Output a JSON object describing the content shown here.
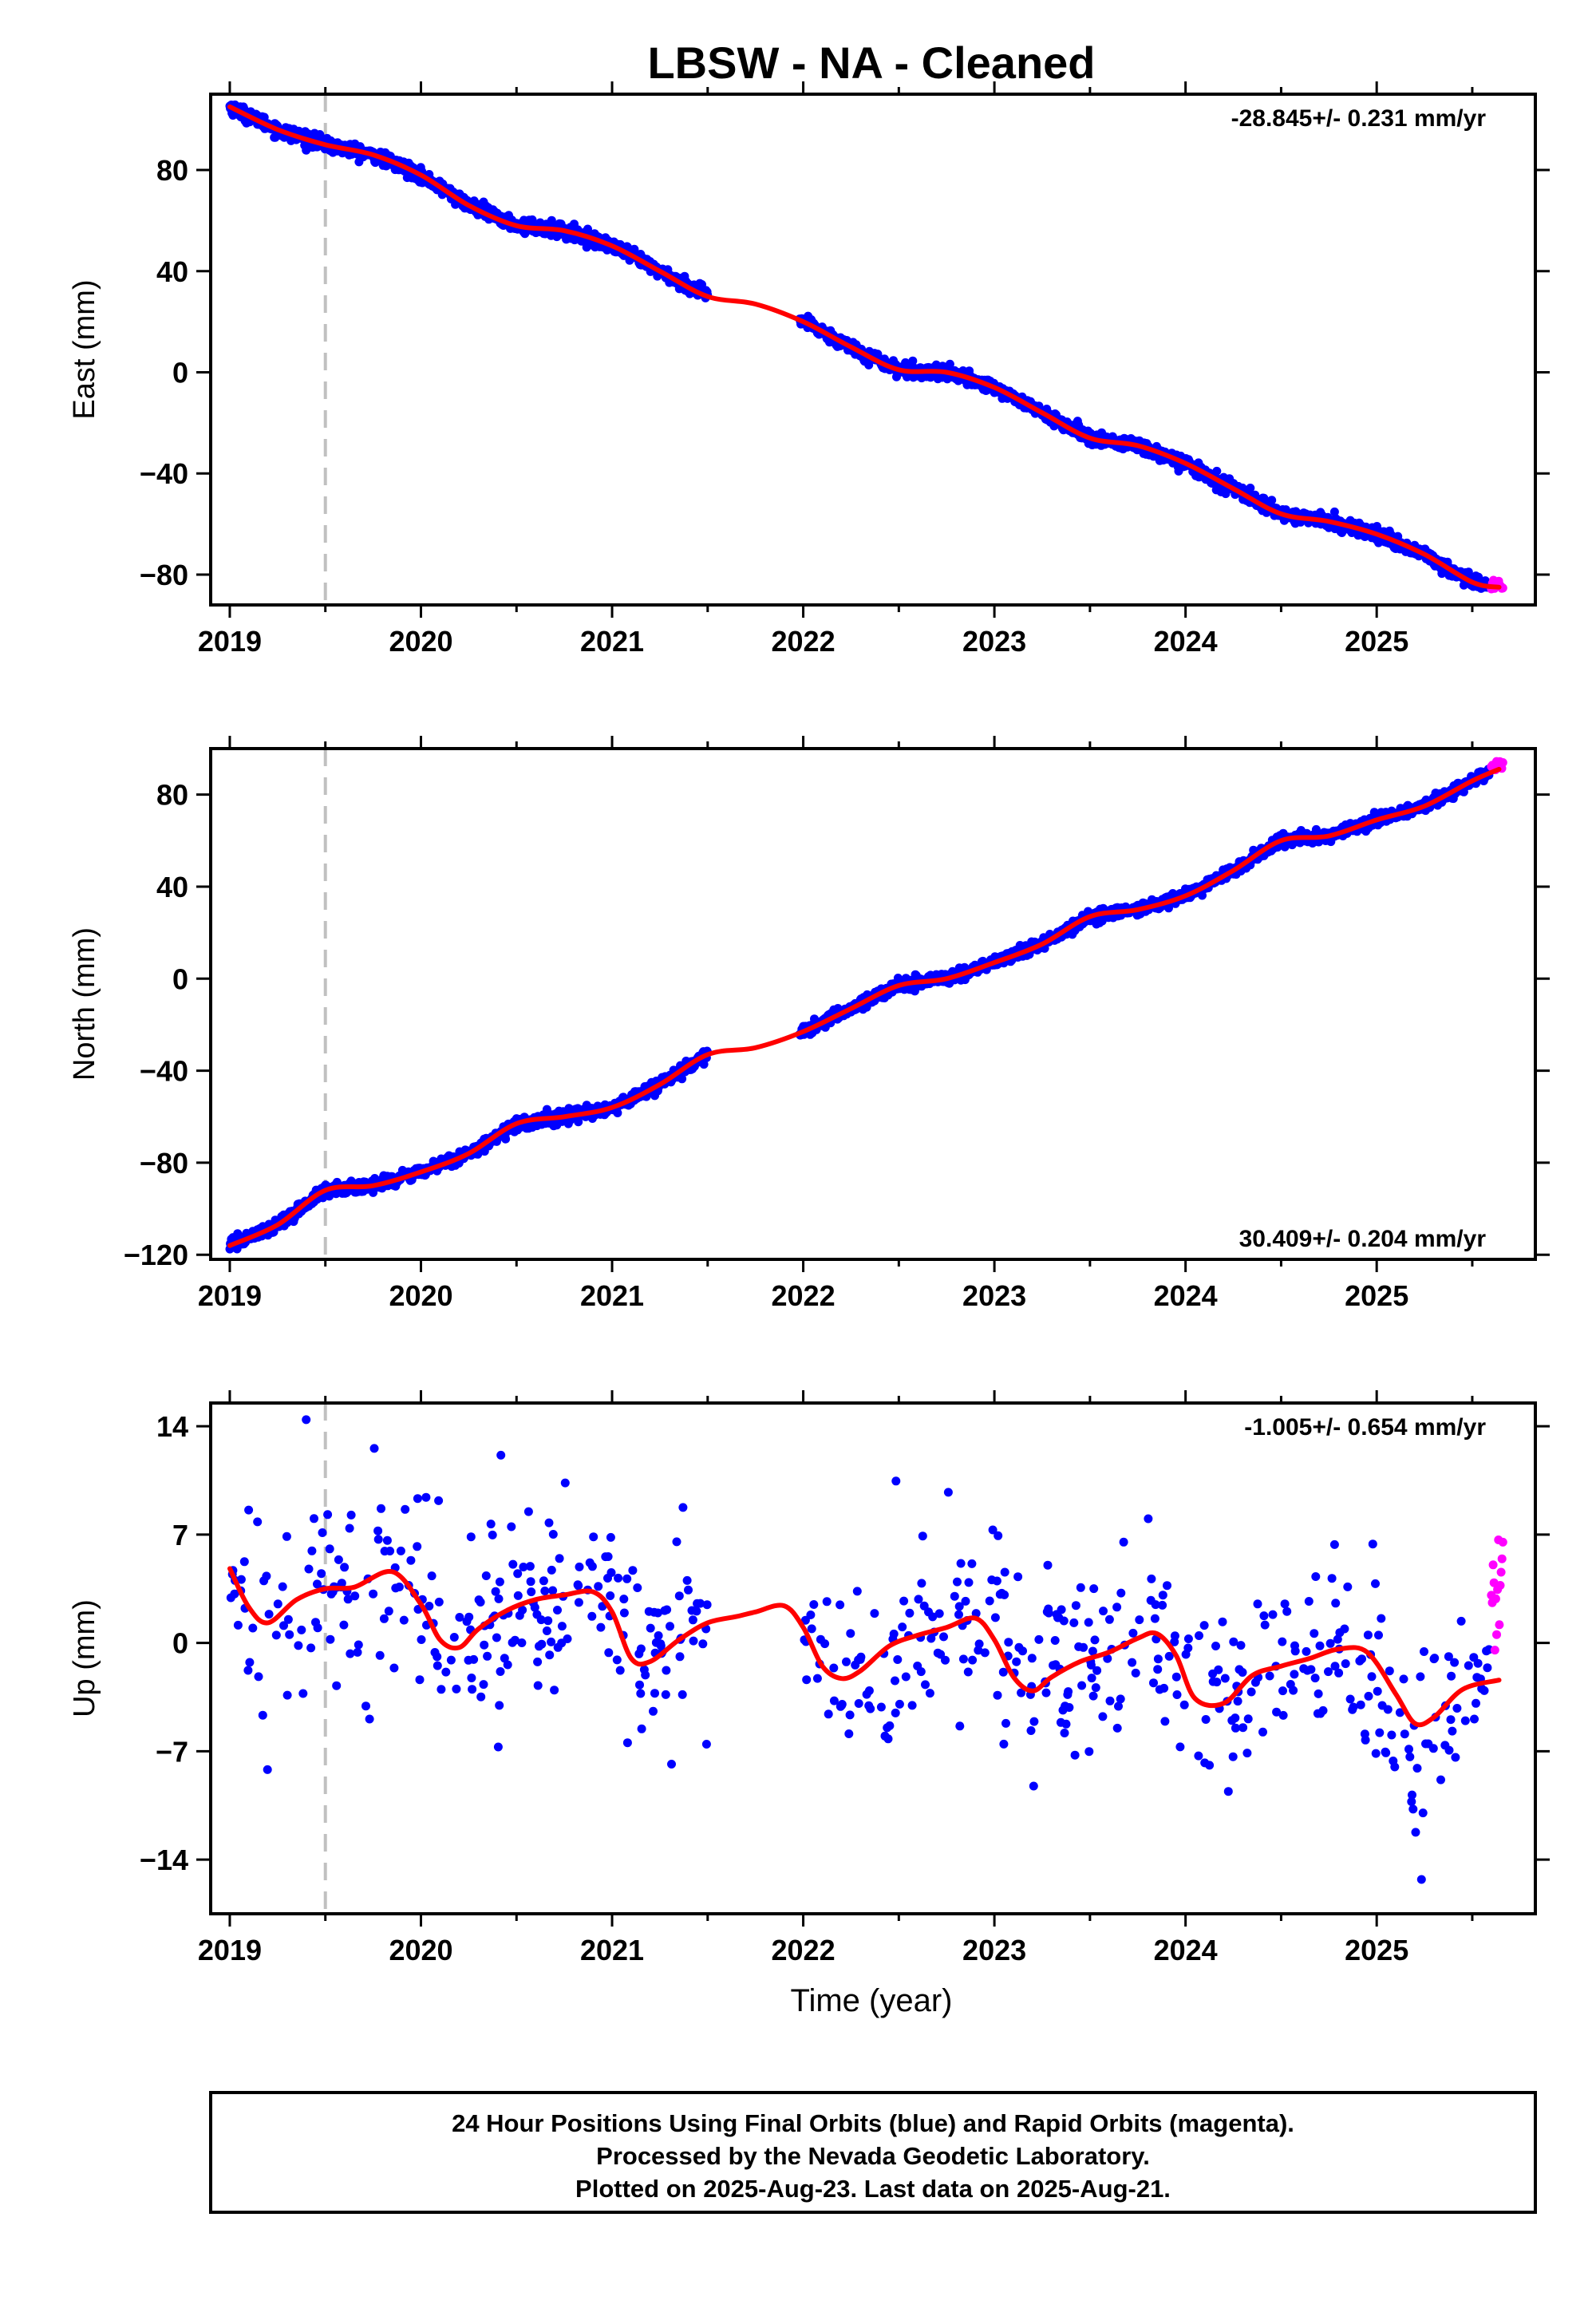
{
  "figure": {
    "title": "LBSW  - NA - Cleaned",
    "xlabel": "Time (year)",
    "footer": [
      "24 Hour Positions Using Final Orbits (blue) and Rapid Orbits (magenta).",
      "Processed by the Nevada Geodetic Laboratory.",
      "Plotted on 2025-Aug-23. Last data on 2025-Aug-21."
    ],
    "colors": {
      "final": "#0000ff",
      "rapid": "#ff00ff",
      "model": "#ff0000",
      "marker": "#c0c0c0"
    }
  },
  "chart_data": [
    {
      "type": "scatter",
      "component": "East",
      "ylabel": "East (mm)",
      "rate_label": "-28.845+/- 0.231 mm/yr",
      "rate_position": "top-right",
      "xlim": [
        2018.9,
        2025.83
      ],
      "ylim": [
        -92,
        110
      ],
      "xticks": [
        2019,
        2020,
        2021,
        2022,
        2023,
        2024,
        2025
      ],
      "xtick_labels": [
        "2019",
        "2020",
        "2021",
        "2022",
        "2023",
        "2024",
        "2025"
      ],
      "yticks": [
        -80,
        -40,
        0,
        40,
        80
      ],
      "ytick_labels": [
        "−80",
        "−40",
        "0",
        "40",
        "80"
      ],
      "gaps": [
        [
          2021.5,
          2021.98
        ]
      ],
      "marker_x": 2019.5,
      "noise": 1.3,
      "model": {
        "x": [
          2019.0,
          2019.25,
          2019.5,
          2019.75,
          2020.0,
          2020.25,
          2020.5,
          2020.75,
          2021.0,
          2021.25,
          2021.5,
          2021.75,
          2022.0,
          2022.25,
          2022.5,
          2022.75,
          2023.0,
          2023.25,
          2023.5,
          2023.75,
          2024.0,
          2024.25,
          2024.5,
          2024.75,
          2025.0,
          2025.25,
          2025.5,
          2025.64
        ],
        "y": [
          105,
          96,
          90,
          86,
          78,
          66,
          58,
          56,
          50,
          40,
          30,
          27,
          20,
          10,
          1,
          0,
          -6,
          -16,
          -26,
          -29,
          -36,
          -46,
          -56,
          -59,
          -64,
          -72,
          -83,
          -85
        ]
      },
      "rapid": {
        "x_start": 2025.6,
        "x_end": 2025.66,
        "count": 12,
        "y_center": -84,
        "y_spread": 2
      }
    },
    {
      "type": "scatter",
      "component": "North",
      "ylabel": "North (mm)",
      "rate_label": "30.409+/- 0.204 mm/yr",
      "rate_position": "bottom-right",
      "xlim": [
        2018.9,
        2025.83
      ],
      "ylim": [
        -122,
        100
      ],
      "xticks": [
        2019,
        2020,
        2021,
        2022,
        2023,
        2024,
        2025
      ],
      "xtick_labels": [
        "2019",
        "2020",
        "2021",
        "2022",
        "2023",
        "2024",
        "2025"
      ],
      "yticks": [
        -120,
        -80,
        -40,
        0,
        40,
        80
      ],
      "ytick_labels": [
        "−120",
        "−80",
        "−40",
        "0",
        "40",
        "80"
      ],
      "gaps": [
        [
          2021.5,
          2021.98
        ]
      ],
      "marker_x": 2019.5,
      "noise": 1.3,
      "model": {
        "x": [
          2019.0,
          2019.25,
          2019.5,
          2019.75,
          2020.0,
          2020.25,
          2020.5,
          2020.75,
          2021.0,
          2021.25,
          2021.5,
          2021.75,
          2022.0,
          2022.25,
          2022.5,
          2022.75,
          2023.0,
          2023.25,
          2023.5,
          2023.75,
          2024.0,
          2024.25,
          2024.5,
          2024.75,
          2025.0,
          2025.25,
          2025.5,
          2025.64
        ],
        "y": [
          -116,
          -107,
          -92,
          -90,
          -84,
          -76,
          -63,
          -60,
          -56,
          -46,
          -33,
          -30,
          -23,
          -13,
          -3,
          0,
          7,
          15,
          27,
          30,
          36,
          47,
          60,
          62,
          69,
          75,
          86,
          91
        ]
      },
      "rapid": {
        "x_start": 2025.6,
        "x_end": 2025.66,
        "count": 12,
        "y_center": 93,
        "y_spread": 2.5
      }
    },
    {
      "type": "scatter",
      "component": "Up",
      "ylabel": "Up (mm)",
      "rate_label": "-1.005+/- 0.654 mm/yr",
      "rate_position": "top-right",
      "xlim": [
        2018.9,
        2025.83
      ],
      "ylim": [
        -17.5,
        15.5
      ],
      "xticks": [
        2019,
        2020,
        2021,
        2022,
        2023,
        2024,
        2025
      ],
      "xtick_labels": [
        "2019",
        "2020",
        "2021",
        "2022",
        "2023",
        "2024",
        "2025"
      ],
      "yticks": [
        -14,
        -7,
        0,
        7,
        14
      ],
      "ytick_labels": [
        "−14",
        "−7",
        "0",
        "7",
        "14"
      ],
      "gaps": [
        [
          2021.5,
          2021.98
        ]
      ],
      "marker_x": 2019.5,
      "noise": 3.3,
      "model": {
        "x": [
          2019.0,
          2019.1,
          2019.2,
          2019.35,
          2019.5,
          2019.65,
          2019.85,
          2020.0,
          2020.1,
          2020.2,
          2020.3,
          2020.45,
          2020.6,
          2020.75,
          2020.9,
          2021.0,
          2021.1,
          2021.2,
          2021.35,
          2021.5,
          2021.65,
          2021.75,
          2021.9,
          2022.0,
          2022.1,
          2022.2,
          2022.3,
          2022.45,
          2022.6,
          2022.75,
          2022.9,
          2023.0,
          2023.1,
          2023.2,
          2023.3,
          2023.45,
          2023.6,
          2023.75,
          2023.85,
          2023.95,
          2024.05,
          2024.2,
          2024.35,
          2024.5,
          2024.65,
          2024.8,
          2024.95,
          2025.1,
          2025.2,
          2025.3,
          2025.45,
          2025.64
        ],
        "y": [
          4.8,
          2.3,
          1.3,
          2.8,
          3.5,
          3.6,
          4.6,
          2.5,
          0.2,
          -0.3,
          0.9,
          2.1,
          2.8,
          3.1,
          3.3,
          2.0,
          -1.0,
          -1.2,
          0.2,
          1.3,
          1.7,
          2.0,
          2.4,
          1.0,
          -1.5,
          -2.3,
          -1.8,
          -0.2,
          0.5,
          1.0,
          1.6,
          0.2,
          -2.2,
          -3.1,
          -2.2,
          -1.2,
          -0.6,
          0.3,
          0.6,
          -0.8,
          -3.6,
          -3.9,
          -2.1,
          -1.5,
          -1.0,
          -0.4,
          -0.6,
          -3.3,
          -5.2,
          -4.8,
          -3.0,
          -2.4
        ]
      },
      "rapid": {
        "x_start": 2025.6,
        "x_end": 2025.66,
        "count": 14,
        "y_center": 3,
        "y_spread": 4.5
      }
    }
  ]
}
